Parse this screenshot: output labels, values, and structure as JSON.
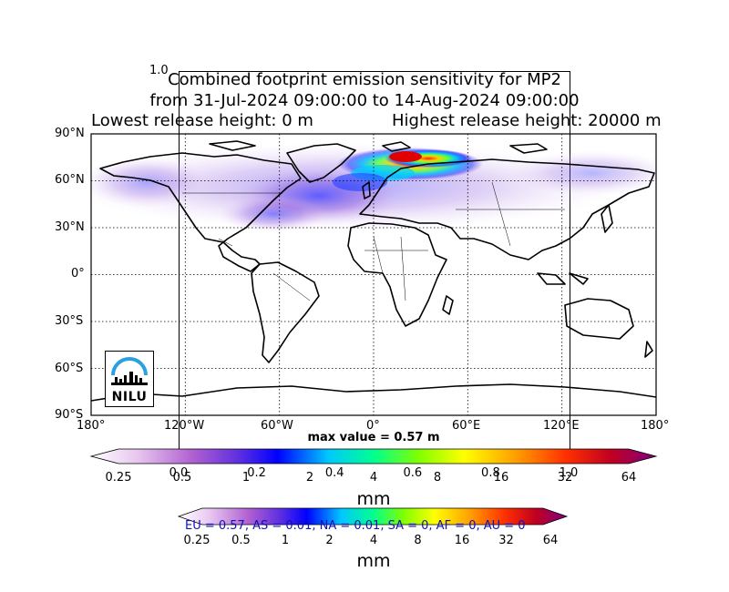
{
  "title": {
    "line1": "Combined footprint emission sensitivity for MP2",
    "line2": "from 31-Jul-2024 09:00:00 to 14-Aug-2024 09:00:00",
    "line3_left": "Lowest release height: 0 m",
    "line3_right": "Highest release height: 20000 m"
  },
  "ghost_axis": {
    "top_label": "1.0",
    "bottom_ticks": [
      "0.0",
      "0.2",
      "0.4",
      "0.6",
      "0.8",
      "1.0"
    ],
    "bottom_values": [
      0.0,
      0.2,
      0.4,
      0.6,
      0.8,
      1.0
    ]
  },
  "map": {
    "lat_labels": [
      "90°N",
      "60°N",
      "30°N",
      "0°",
      "30°S",
      "60°S",
      "90°S"
    ],
    "lat_values": [
      90,
      60,
      30,
      0,
      -30,
      -60,
      -90
    ],
    "lon_labels": [
      "180°",
      "120°W",
      "60°W",
      "0°",
      "60°E",
      "120°E",
      "180°"
    ],
    "lon_values": [
      -180,
      -120,
      -60,
      0,
      60,
      120,
      180
    ],
    "max_value_text": "max value = 0.57 m",
    "logo_text": "NILU",
    "colors": {
      "coast": "#000000",
      "grid": "#000000",
      "background": "#ffffff"
    }
  },
  "colorbar_main": {
    "ticks": [
      "0.25",
      "0.5",
      "1",
      "2",
      "4",
      "8",
      "16",
      "32",
      "64"
    ],
    "values": [
      0.25,
      0.5,
      1,
      2,
      4,
      8,
      16,
      32,
      64
    ],
    "unit": "mm",
    "colors": [
      "#ffffff",
      "#e8c8f0",
      "#b060d0",
      "#5020e0",
      "#0000ff",
      "#00c8ff",
      "#00ff80",
      "#80ff00",
      "#ffff00",
      "#ffa000",
      "#ff3000",
      "#c00000",
      "#800080"
    ]
  },
  "colorbar_second": {
    "ticks": [
      "0.25",
      "0.5",
      "1",
      "2",
      "4",
      "8",
      "16",
      "32",
      "64"
    ],
    "values": [
      0.25,
      0.5,
      1,
      2,
      4,
      8,
      16,
      32,
      64
    ],
    "unit": "mm",
    "overlay_text": "EU = 0.57,  AS = 0.01,  NA = 0.01,  SA = 0,  AF = 0,  AU = 0"
  }
}
